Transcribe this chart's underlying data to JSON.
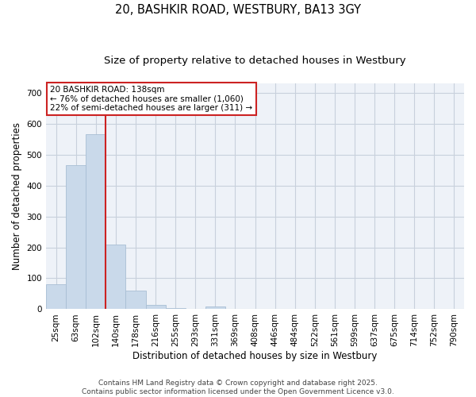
{
  "title_line1": "20, BASHKIR ROAD, WESTBURY, BA13 3GY",
  "title_line2": "Size of property relative to detached houses in Westbury",
  "xlabel": "Distribution of detached houses by size in Westbury",
  "ylabel": "Number of detached properties",
  "categories": [
    "25sqm",
    "63sqm",
    "102sqm",
    "140sqm",
    "178sqm",
    "216sqm",
    "255sqm",
    "293sqm",
    "331sqm",
    "369sqm",
    "408sqm",
    "446sqm",
    "484sqm",
    "522sqm",
    "561sqm",
    "599sqm",
    "637sqm",
    "675sqm",
    "714sqm",
    "752sqm",
    "790sqm"
  ],
  "values": [
    80,
    465,
    565,
    210,
    60,
    15,
    5,
    0,
    8,
    0,
    0,
    0,
    0,
    0,
    0,
    0,
    0,
    0,
    0,
    0,
    0
  ],
  "bar_color": "#c9d9ea",
  "bar_edge_color": "#a8bed4",
  "vline_color": "#cc2222",
  "vline_x": 2.5,
  "annotation_text": "20 BASHKIR ROAD: 138sqm\n← 76% of detached houses are smaller (1,060)\n22% of semi-detached houses are larger (311) →",
  "annotation_box_color": "#ffffff",
  "annotation_box_edge": "#cc2222",
  "ylim": [
    0,
    730
  ],
  "yticks": [
    0,
    100,
    200,
    300,
    400,
    500,
    600,
    700
  ],
  "bg_color": "#ffffff",
  "plot_bg_color": "#eef2f8",
  "grid_color": "#c8d0dc",
  "footer_text": "Contains HM Land Registry data © Crown copyright and database right 2025.\nContains public sector information licensed under the Open Government Licence v3.0.",
  "title_fontsize": 10.5,
  "subtitle_fontsize": 9.5,
  "axis_label_fontsize": 8.5,
  "tick_fontsize": 7.5,
  "annotation_fontsize": 7.5,
  "footer_fontsize": 6.5
}
